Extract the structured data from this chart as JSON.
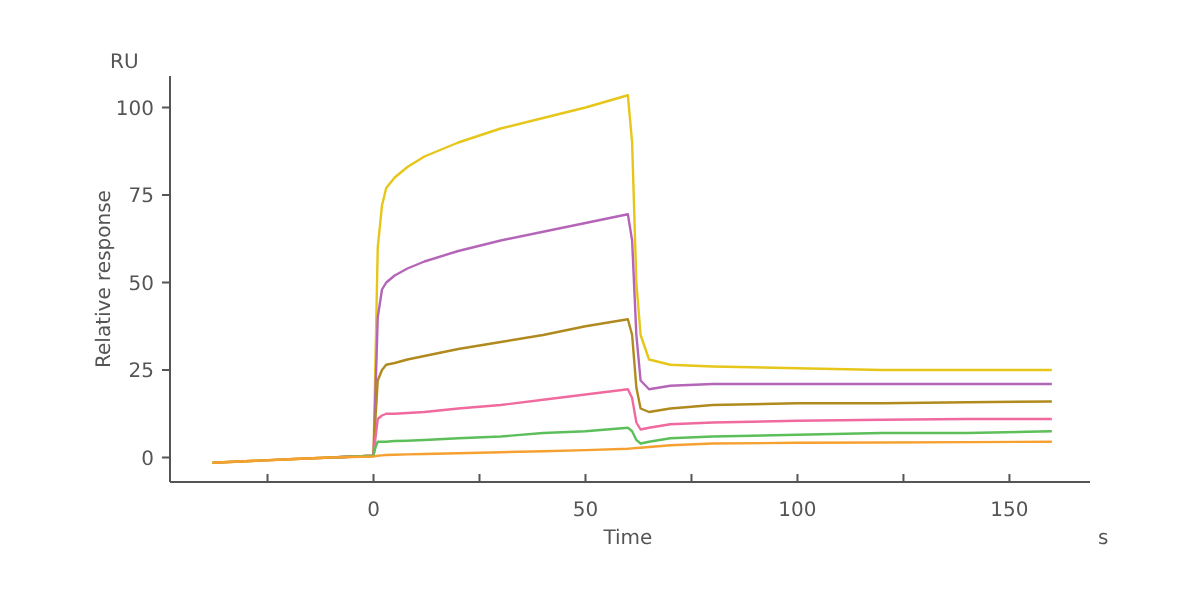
{
  "chart_data": {
    "type": "line",
    "xlabel": "Time",
    "ylabel": "Relative response",
    "annotations": [
      "RU",
      "s"
    ],
    "x": [
      -38,
      -20,
      -10,
      0,
      0.5,
      1,
      2,
      3,
      5,
      8,
      12,
      20,
      30,
      40,
      50,
      60,
      61,
      62,
      63,
      65,
      70,
      80,
      100,
      120,
      140,
      160
    ],
    "xlim": [
      -48,
      169
    ],
    "ylim": [
      -7,
      109
    ],
    "xticks": [
      {
        "value": -25,
        "label": null
      },
      0,
      {
        "value": 25,
        "label": null
      },
      50,
      {
        "value": 75,
        "label": null
      },
      100,
      {
        "value": 125,
        "label": null
      },
      150
    ],
    "yticks": [
      0,
      25,
      50,
      75,
      100
    ],
    "grid": false,
    "marker": "none",
    "line_style": "solid",
    "series": [
      {
        "color": "#e6c619",
        "values": [
          -1.5,
          -0.5,
          0,
          0.5,
          30,
          60,
          72,
          77,
          80,
          83,
          86,
          90,
          94,
          97,
          100,
          103.5,
          90,
          50,
          35,
          28,
          26.5,
          26,
          25.5,
          25,
          25,
          25
        ]
      },
      {
        "color": "#b565b8",
        "values": [
          null,
          null,
          0,
          0.5,
          20,
          40,
          48,
          50,
          52,
          54,
          56,
          59,
          62,
          64.5,
          67,
          69.5,
          62,
          35,
          22,
          19.5,
          20.5,
          21,
          21,
          21,
          21,
          21
        ]
      },
      {
        "color": "#b08a1e",
        "values": [
          -1.5,
          -0.5,
          0,
          0.5,
          12,
          22,
          25,
          26.5,
          27,
          28,
          29,
          31,
          33,
          35,
          37.5,
          39.5,
          35,
          20,
          14,
          13,
          14,
          15,
          15.5,
          15.5,
          15.8,
          16
        ]
      },
      {
        "color": "#f06aa0",
        "values": [
          null,
          null,
          0,
          0.5,
          6,
          11,
          12,
          12.5,
          12.5,
          12.7,
          13,
          14,
          15,
          16.5,
          18,
          19.5,
          17,
          10,
          8,
          8.5,
          9.5,
          10,
          10.5,
          10.8,
          11,
          11
        ]
      },
      {
        "color": "#5cbf5a",
        "values": [
          null,
          null,
          0,
          0.5,
          3,
          4.5,
          4.5,
          4.5,
          4.7,
          4.8,
          5,
          5.5,
          6,
          7,
          7.5,
          8.5,
          7.5,
          5,
          4,
          4.5,
          5.5,
          6,
          6.5,
          7,
          7,
          7.5
        ]
      },
      {
        "color": "#f5a030",
        "values": [
          -1.5,
          -0.5,
          0,
          0.3,
          0.4,
          0.5,
          0.6,
          0.7,
          0.8,
          0.9,
          1,
          1.2,
          1.5,
          1.8,
          2.1,
          2.5,
          2.6,
          2.7,
          2.8,
          3,
          3.5,
          4,
          4.2,
          4.3,
          4.4,
          4.5
        ]
      }
    ]
  }
}
